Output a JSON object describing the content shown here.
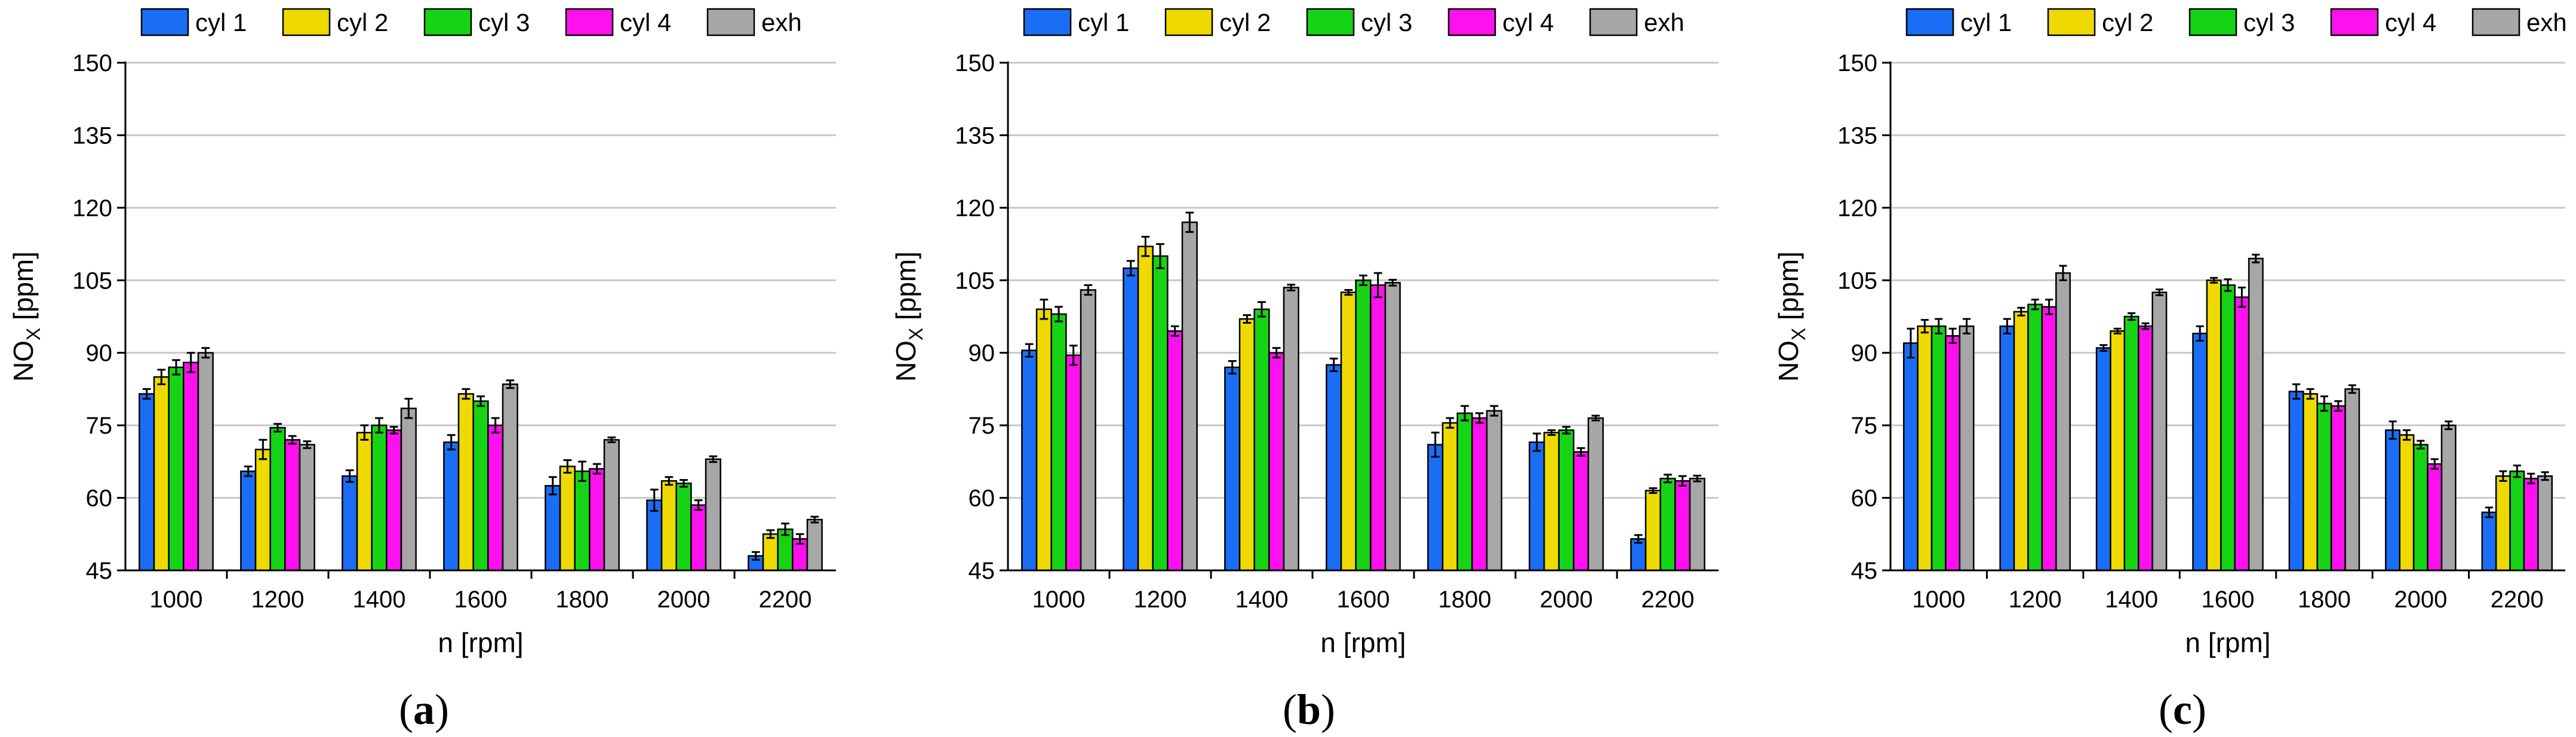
{
  "chart_data": [
    {
      "type": "bar",
      "panel_label": "a",
      "xlabel": "n [rpm]",
      "ylabel": "NO",
      "ylabel_sub": "X",
      "ylabel_unit": " [ppm]",
      "ylim": [
        45,
        150
      ],
      "yticks": [
        "45",
        "60",
        "75",
        "90",
        "105",
        "120",
        "135",
        "150"
      ],
      "grid": true,
      "legend_position": "top",
      "categories": [
        "1000",
        "1200",
        "1400",
        "1600",
        "1800",
        "2000",
        "2200"
      ],
      "series": [
        {
          "name": "cyl 1",
          "color": "#1a6ef5",
          "values": [
            81.5,
            65.5,
            64.5,
            71.5,
            62.5,
            59.5,
            48
          ],
          "errors": [
            1,
            1,
            1.2,
            1.5,
            1.8,
            2.2,
            0.8
          ]
        },
        {
          "name": "cyl 2",
          "color": "#eeda00",
          "values": [
            85,
            70,
            73.5,
            81.5,
            66.5,
            63.5,
            52.5
          ],
          "errors": [
            1.5,
            2,
            1.5,
            1,
            1.3,
            0.8,
            0.8
          ]
        },
        {
          "name": "cyl 3",
          "color": "#16d316",
          "values": [
            87,
            74.5,
            75,
            80,
            65.5,
            63,
            53.5
          ],
          "errors": [
            1.5,
            0.8,
            1.5,
            1,
            2,
            0.7,
            1.2
          ]
        },
        {
          "name": "cyl 4",
          "color": "#ff10ee",
          "values": [
            88,
            72,
            74,
            75,
            66,
            58.5,
            51.5
          ],
          "errors": [
            2,
            0.8,
            0.7,
            1.5,
            1,
            1,
            1
          ]
        },
        {
          "name": "exh",
          "color": "#a7a7a7",
          "values": [
            90,
            71,
            78.5,
            83.5,
            72,
            68,
            55.5
          ],
          "errors": [
            1,
            0.7,
            2,
            0.8,
            0.5,
            0.6,
            0.6
          ]
        }
      ]
    },
    {
      "type": "bar",
      "panel_label": "b",
      "xlabel": "n [rpm]",
      "ylabel": "NO",
      "ylabel_sub": "X",
      "ylabel_unit": " [ppm]",
      "ylim": [
        45,
        150
      ],
      "yticks": [
        "45",
        "60",
        "75",
        "90",
        "105",
        "120",
        "135",
        "150"
      ],
      "grid": true,
      "legend_position": "top",
      "categories": [
        "1000",
        "1200",
        "1400",
        "1600",
        "1800",
        "2000",
        "2200"
      ],
      "series": [
        {
          "name": "cyl 1",
          "color": "#1a6ef5",
          "values": [
            90.5,
            107.5,
            87,
            87.5,
            71,
            71.5,
            51.5
          ],
          "errors": [
            1.3,
            1.5,
            1.3,
            1.3,
            2.5,
            1.8,
            0.8
          ]
        },
        {
          "name": "cyl 2",
          "color": "#eeda00",
          "values": [
            99,
            112,
            97,
            102.5,
            75.5,
            73.5,
            61.5
          ],
          "errors": [
            2,
            2,
            0.8,
            0.5,
            1,
            0.5,
            0.5
          ]
        },
        {
          "name": "cyl 3",
          "color": "#16d316",
          "values": [
            98,
            110,
            99,
            105,
            77.5,
            74,
            64
          ],
          "errors": [
            1.5,
            2.5,
            1.5,
            1,
            1.5,
            0.7,
            0.8
          ]
        },
        {
          "name": "cyl 4",
          "color": "#ff10ee",
          "values": [
            89.5,
            94.5,
            90,
            104,
            76.5,
            69.5,
            63.5
          ],
          "errors": [
            2,
            1,
            1,
            2.5,
            1,
            0.8,
            1
          ]
        },
        {
          "name": "exh",
          "color": "#a7a7a7",
          "values": [
            103,
            117,
            103.5,
            104.5,
            78,
            76.5,
            64
          ],
          "errors": [
            1,
            2,
            0.6,
            0.6,
            1,
            0.5,
            0.6
          ]
        }
      ]
    },
    {
      "type": "bar",
      "panel_label": "c",
      "xlabel": "n [rpm]",
      "ylabel": "NO",
      "ylabel_sub": "X",
      "ylabel_unit": " [ppm]",
      "ylim": [
        45,
        150
      ],
      "yticks": [
        "45",
        "60",
        "75",
        "90",
        "105",
        "120",
        "135",
        "150"
      ],
      "grid": true,
      "legend_position": "top",
      "categories": [
        "1000",
        "1200",
        "1400",
        "1600",
        "1800",
        "2000",
        "2200"
      ],
      "series": [
        {
          "name": "cyl 1",
          "color": "#1a6ef5",
          "values": [
            92,
            95.5,
            91,
            94,
            82,
            74,
            57
          ],
          "errors": [
            3,
            1.5,
            0.6,
            1.5,
            1.5,
            1.8,
            1
          ]
        },
        {
          "name": "cyl 2",
          "color": "#eeda00",
          "values": [
            95.5,
            98.5,
            94.5,
            105,
            81.5,
            73,
            64.5
          ],
          "errors": [
            1.3,
            0.8,
            0.5,
            0.5,
            1,
            1,
            1
          ]
        },
        {
          "name": "cyl 3",
          "color": "#16d316",
          "values": [
            95.5,
            100,
            97.5,
            104,
            79.5,
            71,
            65.5
          ],
          "errors": [
            1.5,
            1,
            0.7,
            1.2,
            1.5,
            0.8,
            1.2
          ]
        },
        {
          "name": "cyl 4",
          "color": "#ff10ee",
          "values": [
            93.5,
            99.5,
            95.5,
            101.5,
            79,
            67,
            64
          ],
          "errors": [
            1.5,
            1.5,
            0.6,
            2,
            1,
            1,
            1
          ]
        },
        {
          "name": "exh",
          "color": "#a7a7a7",
          "values": [
            95.5,
            106.5,
            102.5,
            109.5,
            82.5,
            75,
            64.5
          ],
          "errors": [
            1.5,
            1.5,
            0.6,
            0.8,
            0.8,
            0.8,
            0.8
          ]
        }
      ]
    }
  ]
}
